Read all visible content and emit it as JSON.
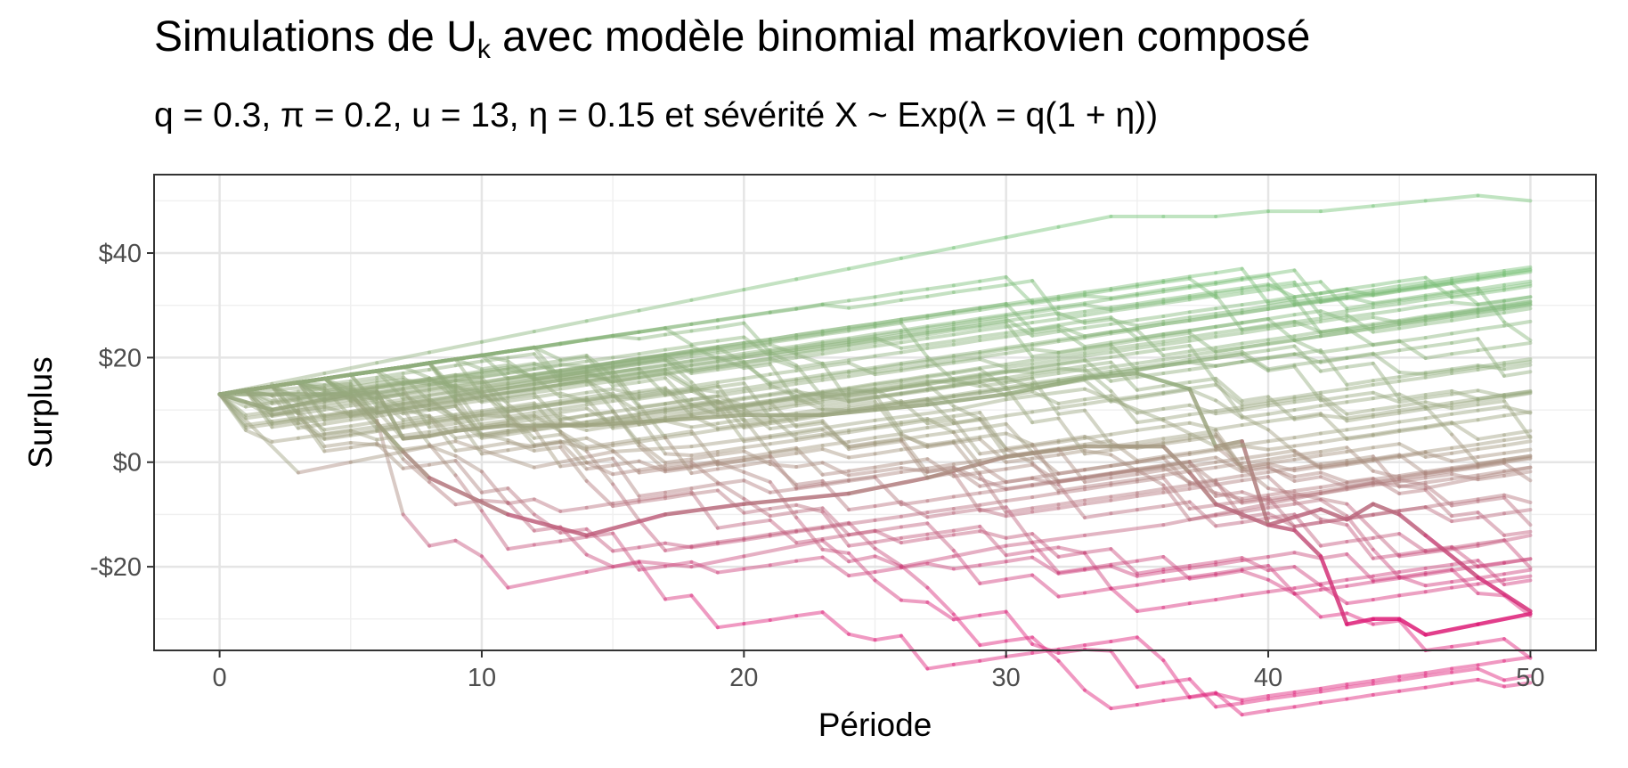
{
  "chart_data": {
    "type": "line",
    "title_main": "Simulations de U",
    "title_sub": "k",
    "title_rest": " avec modèle binomial markovien composé",
    "subtitle": "q = 0.3, π = 0.2, u = 13, η = 0.15 et sévérité X ~ Exp(λ = q(1 + η))",
    "xlabel": "Période",
    "ylabel": "Surplus",
    "xlim": [
      -2.5,
      52.5
    ],
    "ylim": [
      -36,
      55
    ],
    "x_ticks": [
      0,
      10,
      20,
      30,
      40,
      50
    ],
    "x_tick_labels": [
      "0",
      "10",
      "20",
      "30",
      "40",
      "50"
    ],
    "y_ticks": [
      40,
      20,
      0,
      -20
    ],
    "y_tick_labels": [
      "$40",
      "$20",
      "$0",
      "-$20"
    ],
    "grid": true,
    "color_scale": [
      "#dd1c77",
      "#a0a080",
      "#74c476"
    ],
    "n_series": 60,
    "series": [
      {
        "x": [
          0,
          5,
          7,
          8,
          11,
          14,
          17,
          20,
          24,
          27,
          30,
          33,
          36,
          37,
          38,
          40,
          42,
          43,
          44,
          45,
          46,
          48,
          50
        ],
        "values": [
          13,
          13,
          2,
          -3,
          -10,
          -14,
          -10,
          -8,
          -6,
          -3,
          1,
          3,
          3,
          -2,
          -8,
          -12,
          -9,
          -11,
          -8,
          -10,
          -14,
          -22,
          -28.5
        ],
        "highlight": true
      },
      {
        "x": [
          0,
          2,
          4,
          5,
          6,
          7,
          8,
          9,
          10,
          11,
          14,
          17,
          20,
          23,
          25,
          27,
          30,
          33,
          35,
          37,
          38,
          39,
          40,
          41,
          42,
          43,
          44,
          45,
          46,
          48,
          50
        ],
        "values": [
          13,
          10,
          12,
          13,
          13.5,
          4.5,
          5,
          6,
          6.5,
          7,
          7,
          8,
          9,
          9,
          10,
          11,
          13,
          16,
          17,
          14,
          3,
          4,
          -12,
          -13,
          -18,
          -31,
          -30,
          -30,
          -33,
          -31,
          -29
        ],
        "highlight": true
      },
      {
        "x": [
          0,
          5,
          6,
          7,
          8,
          9,
          10,
          11,
          14,
          16,
          18,
          20,
          23,
          24,
          25,
          26,
          28,
          30,
          33,
          36,
          38,
          40,
          42,
          44,
          46,
          48,
          50
        ],
        "values": [
          13,
          15,
          8,
          -10,
          -16,
          -15,
          -18,
          -24,
          -21,
          -19,
          -20,
          -18,
          -15,
          -19,
          -18,
          -20,
          -18,
          -16,
          -14,
          -12,
          -10,
          -8,
          -6,
          -4,
          -5,
          -3,
          -1
        ]
      },
      {
        "x": [
          0,
          3,
          5,
          9,
          12,
          15,
          18,
          21,
          25,
          28,
          30,
          33,
          36,
          38,
          40,
          43,
          45,
          48,
          50
        ],
        "values": [
          13,
          -2,
          0,
          4,
          -1,
          2,
          3,
          5,
          8,
          10,
          12,
          14,
          8,
          3,
          -5,
          -8,
          -18,
          -16,
          -14
        ]
      },
      {
        "x": [
          0,
          2,
          4,
          6,
          8,
          10,
          12,
          14,
          16,
          18,
          20,
          22,
          24,
          26,
          28,
          30,
          32,
          34,
          36,
          38,
          40,
          42,
          44,
          46,
          48,
          50
        ],
        "values": [
          13,
          15,
          17,
          19,
          21,
          23,
          25,
          27,
          29,
          31,
          33,
          35,
          37,
          39,
          41,
          43,
          45,
          47,
          47,
          47,
          48,
          48,
          49,
          50,
          51,
          50
        ]
      }
    ],
    "series_note": "additional generated series render the dense fan of paths"
  }
}
